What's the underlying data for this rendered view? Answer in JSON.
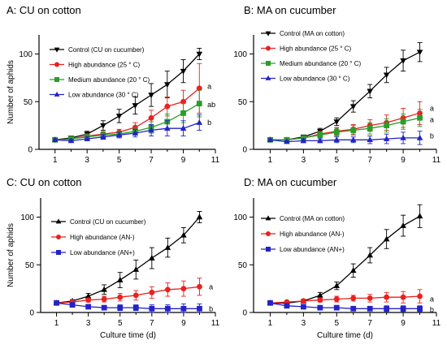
{
  "chart_data": [
    {
      "type": "line",
      "title": "A: CU on cotton",
      "xlabel": "",
      "ylabel": "Number of aphids",
      "xlim": [
        0,
        11
      ],
      "ylim": [
        0,
        120
      ],
      "xticks": [
        1,
        3,
        5,
        7,
        9,
        11
      ],
      "yticks": [
        0,
        50,
        100
      ],
      "legend_position": "top-left",
      "series": [
        {
          "name": "Control  (CU on cucumber)",
          "color": "#000000",
          "marker": "triangle-down",
          "x": [
            1,
            2,
            3,
            4,
            5,
            6,
            7,
            8,
            9,
            10
          ],
          "y": [
            10,
            12,
            16,
            25,
            35,
            46,
            57,
            68,
            82,
            100
          ],
          "err": [
            1,
            1.5,
            3,
            5,
            7,
            9,
            12,
            14,
            12,
            6
          ]
        },
        {
          "name": "High abundance   (25 ° C)",
          "color": "#e8221e",
          "marker": "circle",
          "x": [
            1,
            2,
            3,
            4,
            5,
            6,
            7,
            8,
            9,
            10
          ],
          "y": [
            10,
            11,
            14,
            16,
            18,
            23,
            33,
            45,
            50,
            64
          ],
          "err": [
            1,
            1.5,
            2,
            2.5,
            3,
            5,
            8,
            10,
            12,
            26
          ]
        },
        {
          "name": "Medium abundance  (20 ° C)",
          "color": "#2a9d2a",
          "marker": "square",
          "x": [
            1,
            2,
            3,
            4,
            5,
            6,
            7,
            8,
            9,
            10
          ],
          "y": [
            10,
            11,
            13,
            15,
            16,
            19,
            23,
            29,
            38,
            48
          ],
          "err": [
            1,
            1.5,
            2,
            2.5,
            3,
            4,
            6,
            8,
            10,
            14
          ]
        },
        {
          "name": "Low abundance   (30 ° C)",
          "color": "#2323c8",
          "marker": "triangle-up",
          "x": [
            1,
            2,
            3,
            4,
            5,
            6,
            7,
            8,
            9,
            10
          ],
          "y": [
            10,
            9,
            11,
            13,
            15,
            17,
            20,
            22,
            22,
            28
          ],
          "err": [
            1,
            1.5,
            2,
            2.5,
            3,
            4,
            6,
            8,
            8,
            8
          ]
        }
      ],
      "annotations": [
        {
          "text": "a",
          "x": 10.5,
          "y": 66
        },
        {
          "text": "ab",
          "x": 10.5,
          "y": 47
        },
        {
          "text": "b",
          "x": 10.5,
          "y": 28
        }
      ]
    },
    {
      "type": "line",
      "title": "B: MA on cucumber",
      "xlabel": "",
      "ylabel": "",
      "xlim": [
        0,
        11
      ],
      "ylim": [
        0,
        120
      ],
      "xticks": [
        1,
        3,
        5,
        7,
        9,
        11
      ],
      "yticks": [
        0,
        50,
        100
      ],
      "legend_position": "top-left",
      "series": [
        {
          "name": "Control   (MA on cotton)",
          "color": "#000000",
          "marker": "triangle-down",
          "x": [
            1,
            2,
            3,
            4,
            5,
            6,
            7,
            8,
            9,
            10
          ],
          "y": [
            10,
            10,
            13,
            19,
            29,
            45,
            61,
            78,
            93,
            102
          ],
          "err": [
            1,
            1,
            2,
            3,
            4,
            6,
            7,
            8,
            11,
            10
          ]
        },
        {
          "name": "High abundance   (25 ° C)",
          "color": "#e8221e",
          "marker": "circle",
          "x": [
            1,
            2,
            3,
            4,
            5,
            6,
            7,
            8,
            9,
            10
          ],
          "y": [
            10,
            10,
            12,
            16,
            19,
            21,
            25,
            28,
            33,
            38
          ],
          "err": [
            1,
            1,
            2,
            3,
            4,
            5,
            6,
            8,
            10,
            12
          ]
        },
        {
          "name": "Medium abundance   (20 ° C)",
          "color": "#2a9d2a",
          "marker": "square",
          "x": [
            1,
            2,
            3,
            4,
            5,
            6,
            7,
            8,
            9,
            10
          ],
          "y": [
            10,
            10,
            12,
            15,
            18,
            20,
            22,
            25,
            29,
            33
          ],
          "err": [
            1,
            1,
            2,
            3,
            4,
            5,
            6,
            7,
            8,
            9
          ]
        },
        {
          "name": "Low abundance   (30 ° C)",
          "color": "#2323c8",
          "marker": "triangle-up",
          "x": [
            1,
            2,
            3,
            4,
            5,
            6,
            7,
            8,
            9,
            10
          ],
          "y": [
            10,
            8,
            9,
            9,
            10,
            10,
            10,
            11,
            12,
            12
          ],
          "err": [
            1,
            1,
            2,
            2,
            3,
            3,
            4,
            5,
            6,
            7
          ]
        }
      ],
      "annotations": [
        {
          "text": "a",
          "x": 10.6,
          "y": 43
        },
        {
          "text": "a",
          "x": 10.6,
          "y": 31
        },
        {
          "text": "b",
          "x": 10.6,
          "y": 14
        }
      ]
    },
    {
      "type": "line",
      "title": "C: CU on cotton",
      "xlabel": "Culture time (d)",
      "ylabel": "Number of aphids",
      "xlim": [
        0,
        11
      ],
      "ylim": [
        0,
        120
      ],
      "xticks": [
        1,
        3,
        5,
        7,
        9,
        11
      ],
      "yticks": [
        0,
        50,
        100
      ],
      "legend_position": "top-left",
      "series": [
        {
          "name": "Control (CU on cucumber)",
          "color": "#000000",
          "marker": "triangle-up",
          "x": [
            1,
            2,
            3,
            4,
            5,
            6,
            7,
            8,
            9,
            10
          ],
          "y": [
            10,
            12,
            17,
            24,
            34,
            45,
            57,
            68,
            81,
            100
          ],
          "err": [
            1,
            1.5,
            3,
            5,
            8,
            10,
            11,
            10,
            8,
            6
          ]
        },
        {
          "name": "High abundance   (AN-)",
          "color": "#e8221e",
          "marker": "circle",
          "x": [
            1,
            2,
            3,
            4,
            5,
            6,
            7,
            8,
            9,
            10
          ],
          "y": [
            10,
            11,
            13,
            14,
            16,
            18,
            21,
            24,
            25,
            27
          ],
          "err": [
            1,
            1.5,
            2,
            3,
            4,
            5,
            6,
            7,
            8,
            9
          ]
        },
        {
          "name": "Low abundance   (AN+)",
          "color": "#2323c8",
          "marker": "square",
          "x": [
            1,
            2,
            3,
            4,
            5,
            6,
            7,
            8,
            9,
            10
          ],
          "y": [
            10,
            8,
            6,
            5,
            5,
            5,
            4,
            4,
            4,
            4
          ],
          "err": [
            1,
            1,
            2,
            2,
            3,
            3,
            4,
            4,
            5,
            5
          ]
        }
      ],
      "annotations": [
        {
          "text": "a",
          "x": 10.6,
          "y": 27
        },
        {
          "text": "b",
          "x": 10.6,
          "y": 4
        }
      ]
    },
    {
      "type": "line",
      "title": "D: MA on cucumber",
      "xlabel": "Culture time (d)",
      "ylabel": "",
      "xlim": [
        0,
        11
      ],
      "ylim": [
        0,
        120
      ],
      "xticks": [
        1,
        3,
        5,
        7,
        9,
        11
      ],
      "yticks": [
        0,
        50,
        100
      ],
      "legend_position": "top-left",
      "series": [
        {
          "name": "Control   (MA on cotton)",
          "color": "#000000",
          "marker": "triangle-up",
          "x": [
            1,
            2,
            3,
            4,
            5,
            6,
            7,
            8,
            9,
            10
          ],
          "y": [
            10,
            10,
            12,
            18,
            28,
            44,
            60,
            77,
            91,
            101
          ],
          "err": [
            1,
            1,
            2,
            3,
            4,
            7,
            8,
            10,
            11,
            12
          ]
        },
        {
          "name": "High abundance   (AN-)",
          "color": "#e8221e",
          "marker": "circle",
          "x": [
            1,
            2,
            3,
            4,
            5,
            6,
            7,
            8,
            9,
            10
          ],
          "y": [
            10,
            11,
            12,
            13,
            14,
            15,
            15,
            16,
            16,
            17
          ],
          "err": [
            1,
            1,
            2,
            2,
            3,
            3,
            4,
            5,
            6,
            7
          ]
        },
        {
          "name": "Low abundance   (AN+)",
          "color": "#2323c8",
          "marker": "square",
          "x": [
            1,
            2,
            3,
            4,
            5,
            6,
            7,
            8,
            9,
            10
          ],
          "y": [
            10,
            7,
            6,
            5,
            5,
            4,
            4,
            4,
            4,
            4
          ],
          "err": [
            1,
            1,
            1,
            2,
            2,
            2,
            2,
            3,
            3,
            3
          ]
        }
      ],
      "annotations": [
        {
          "text": "a",
          "x": 10.6,
          "y": 14
        },
        {
          "text": "b",
          "x": 10.6,
          "y": 3
        }
      ]
    }
  ]
}
